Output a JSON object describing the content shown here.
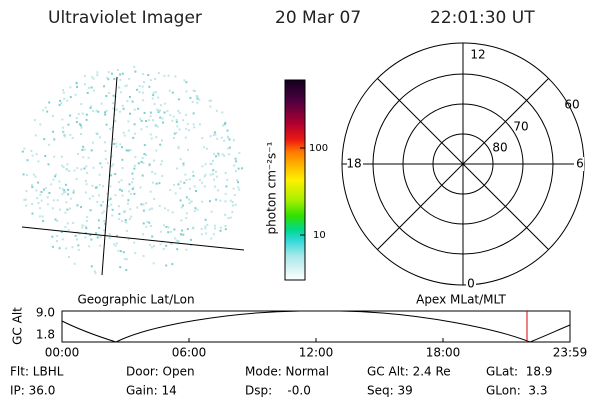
{
  "header": {
    "instrument": "Ultraviolet Imager",
    "date": "20 Mar 07",
    "time": "22:01:30 UT"
  },
  "colorbar": {
    "label": "photon cm⁻²s⁻¹",
    "ticks": [
      "100",
      "10"
    ]
  },
  "polar": {
    "mlt_labels": [
      "12",
      "18",
      "6",
      "0"
    ],
    "lat_labels": [
      "60",
      "70",
      "80"
    ]
  },
  "altitude_panel": {
    "left_title": "Geographic Lat/Lon",
    "right_title": "Apex MLat/MLT",
    "y_label": "GC Alt",
    "y_ticks": [
      "9.0",
      "1.8"
    ],
    "x_ticks": [
      "00:00",
      "06:00",
      "12:00",
      "18:00",
      "23:59"
    ]
  },
  "status": {
    "rows": [
      [
        "Flt: LBHL",
        "Door: Open",
        "Mode: Normal",
        "GC Alt: 2.4 Re",
        "GLat:  18.9"
      ],
      [
        "IP: 36.0",
        "Gain: 14",
        "Dsp:    -0.0",
        "Seq: 39",
        "GLon:  3.3"
      ]
    ]
  }
}
